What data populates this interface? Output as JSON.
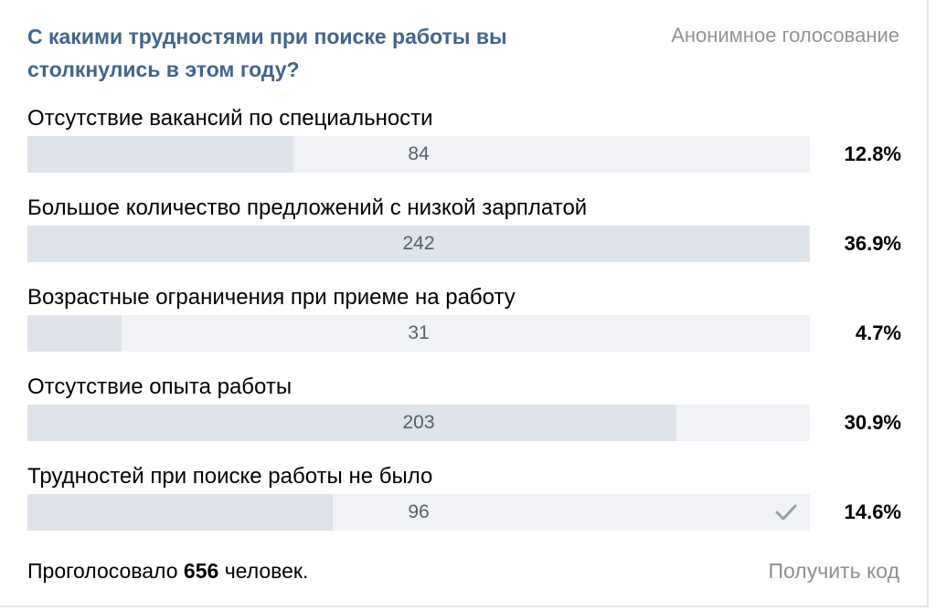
{
  "poll": {
    "question": "С какими трудностями при поиске работы вы столкнулись в этом году?",
    "type_label": "Анонимное голосование",
    "options": [
      {
        "label": "Отсутствие вакансий по специальности",
        "count": "84",
        "percent": "12.8%",
        "fill": 0.34,
        "selected": false
      },
      {
        "label": "Большое количество предложений с низкой зарплатой",
        "count": "242",
        "percent": "36.9%",
        "fill": 1.0,
        "selected": false
      },
      {
        "label": "Возрастные ограничения при приеме на работу",
        "count": "31",
        "percent": "4.7%",
        "fill": 0.12,
        "selected": false
      },
      {
        "label": "Отсутствие опыта работы",
        "count": "203",
        "percent": "30.9%",
        "fill": 0.83,
        "selected": false
      },
      {
        "label": "Трудностей при поиске работы не было",
        "count": "96",
        "percent": "14.6%",
        "fill": 0.39,
        "selected": true
      }
    ],
    "footer": {
      "voted_prefix": "Проголосовало",
      "voted_count": "656",
      "voted_suffix": "человек.",
      "get_code_label": "Получить код"
    }
  },
  "colors": {
    "question": "#42648b",
    "bar_track": "#f0f2f5",
    "bar_fill": "#dfe4ea",
    "check": "#8fa2b5"
  },
  "icons": {
    "selected_check": "check-icon"
  }
}
